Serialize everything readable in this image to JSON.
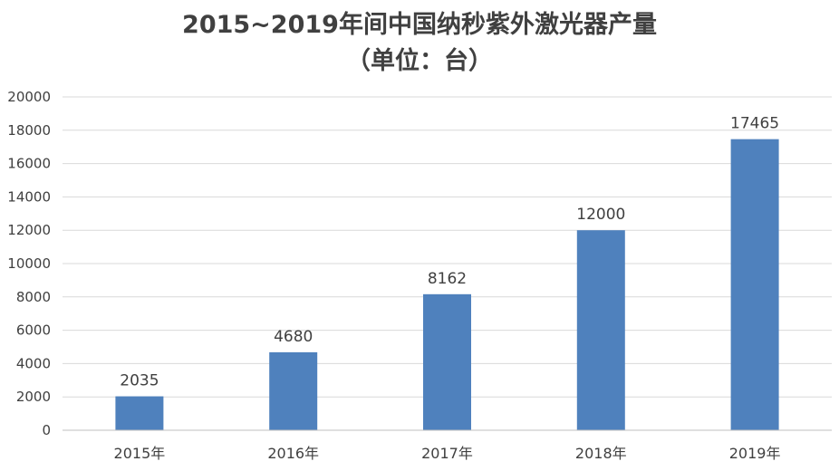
{
  "chart_data": {
    "type": "bar",
    "title": "2015~2019年间中国纳秒紫外激光器产量",
    "subtitle": "（单位：台）",
    "categories": [
      "2015年",
      "2016年",
      "2017年",
      "2018年",
      "2019年"
    ],
    "values": [
      2035,
      4680,
      8162,
      12000,
      17465
    ],
    "data_labels": [
      "2035",
      "4680",
      "8162",
      "12000",
      "17465"
    ],
    "y_ticks": [
      0,
      2000,
      4000,
      6000,
      8000,
      10000,
      12000,
      14000,
      16000,
      18000,
      20000
    ],
    "ylim": [
      0,
      20000
    ],
    "grid": true,
    "legend": "none",
    "colors": {
      "bar": "#4F81BD",
      "grid": "#D9D9D9",
      "axis": "#BFBFBF",
      "text": "#404040"
    }
  }
}
